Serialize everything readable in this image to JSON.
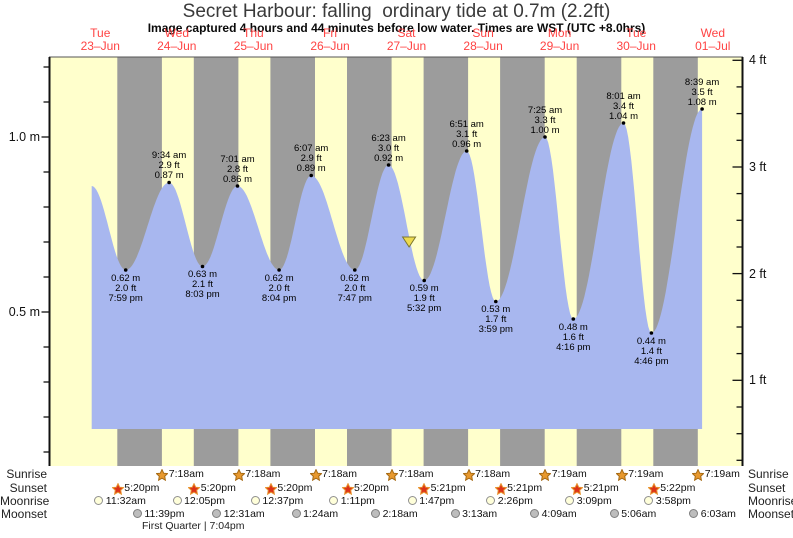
{
  "header": {
    "title": "Secret Harbour: falling  ordinary tide at 0.7m (2.2ft)",
    "subtitle": "Image captured 4 hours and 44 minutes before low water. Times are WST (UTC +8.0hrs)"
  },
  "colors": {
    "day_band": "#FFFFCC",
    "night_band": "#9C9C9C",
    "tide_fill": "#A8B7EF",
    "date_text": "#FF4343",
    "axis_line": "#111111",
    "sunrise_star_fill": "#E8992E",
    "sunrise_star_stroke": "#A66A14",
    "sunset_star_fill": "#DD3318",
    "sunset_star_stroke": "#E8952F",
    "moonrise_fill": "#FFFFDA",
    "moonrise_stroke": "#909090",
    "moonset_fill": "#BDBDBD",
    "moonset_stroke": "#7E7E7E",
    "marker_fill": "#EDDA4E",
    "marker_stroke": "#7A7530"
  },
  "chart_data": {
    "type": "area",
    "description": "Tide height curve over 9 days with day/night shading; highs/lows annotated in metres and feet with times",
    "days": [
      {
        "name": "Tue",
        "date": "23–Jun"
      },
      {
        "name": "Wed",
        "date": "24–Jun"
      },
      {
        "name": "Thu",
        "date": "25–Jun"
      },
      {
        "name": "Fri",
        "date": "26–Jun"
      },
      {
        "name": "Sat",
        "date": "27–Jun"
      },
      {
        "name": "Sun",
        "date": "28–Jun"
      },
      {
        "name": "Mon",
        "date": "29–Jun"
      },
      {
        "name": "Tue",
        "date": "30–Jun"
      },
      {
        "name": "Wed",
        "date": "01–Jul"
      }
    ],
    "y_axis_left": {
      "unit": "m",
      "labeled_ticks": [
        {
          "value": 1.0,
          "label": "1.0 m"
        },
        {
          "value": 0.5,
          "label": "0.5 m"
        }
      ],
      "minor_tick_step_m": 0.1,
      "range_m": [
        0.06,
        1.23
      ]
    },
    "y_axis_right": {
      "unit": "ft",
      "labeled_ticks": [
        {
          "value": 4,
          "label": "4 ft"
        },
        {
          "value": 3,
          "label": "3 ft"
        },
        {
          "value": 2,
          "label": "2 ft"
        },
        {
          "value": 1,
          "label": "1 ft"
        }
      ],
      "minor_tick_step_ft": 0.25
    },
    "extremes": [
      {
        "type": "high",
        "labeled": false,
        "t_hours": 9.3,
        "height_m": 0.86,
        "height_ft": null,
        "time": null,
        "height_m_label": null,
        "height_ft_label": null
      },
      {
        "type": "low",
        "labeled": true,
        "t_hours": 19.98,
        "height_m": 0.62,
        "height_ft": 2.0,
        "time": "7:59 pm",
        "height_m_label": "0.62 m",
        "height_ft_label": "2.0 ft"
      },
      {
        "type": "high",
        "labeled": true,
        "t_hours": 33.57,
        "height_m": 0.87,
        "height_ft": 2.9,
        "time": "9:34 am",
        "height_m_label": "0.87 m",
        "height_ft_label": "2.9 ft"
      },
      {
        "type": "low",
        "labeled": true,
        "t_hours": 44.05,
        "height_m": 0.63,
        "height_ft": 2.1,
        "time": "8:03 pm",
        "height_m_label": "0.63 m",
        "height_ft_label": "2.1 ft"
      },
      {
        "type": "high",
        "labeled": true,
        "t_hours": 55.02,
        "height_m": 0.86,
        "height_ft": 2.8,
        "time": "7:01 am",
        "height_m_label": "0.86 m",
        "height_ft_label": "2.8 ft"
      },
      {
        "type": "low",
        "labeled": true,
        "t_hours": 68.07,
        "height_m": 0.62,
        "height_ft": 2.0,
        "time": "8:04 pm",
        "height_m_label": "0.62 m",
        "height_ft_label": "2.0 ft"
      },
      {
        "type": "high",
        "labeled": true,
        "t_hours": 78.12,
        "height_m": 0.89,
        "height_ft": 2.9,
        "time": "6:07 am",
        "height_m_label": "0.89 m",
        "height_ft_label": "2.9 ft"
      },
      {
        "type": "low",
        "labeled": true,
        "t_hours": 91.78,
        "height_m": 0.62,
        "height_ft": 2.0,
        "time": "7:47 pm",
        "height_m_label": "0.62 m",
        "height_ft_label": "2.0 ft"
      },
      {
        "type": "high",
        "labeled": true,
        "t_hours": 102.38,
        "height_m": 0.92,
        "height_ft": 3.0,
        "time": "6:23 am",
        "height_m_label": "0.92 m",
        "height_ft_label": "3.0 ft"
      },
      {
        "type": "low",
        "labeled": true,
        "t_hours": 113.53,
        "height_m": 0.59,
        "height_ft": 1.9,
        "time": "5:32 pm",
        "height_m_label": "0.59 m",
        "height_ft_label": "1.9 ft"
      },
      {
        "type": "high",
        "labeled": true,
        "t_hours": 126.85,
        "height_m": 0.96,
        "height_ft": 3.1,
        "time": "6:51 am",
        "height_m_label": "0.96 m",
        "height_ft_label": "3.1 ft"
      },
      {
        "type": "low",
        "labeled": true,
        "t_hours": 135.98,
        "height_m": 0.53,
        "height_ft": 1.7,
        "time": "3:59 pm",
        "height_m_label": "0.53 m",
        "height_ft_label": "1.7 ft"
      },
      {
        "type": "high",
        "labeled": true,
        "t_hours": 151.42,
        "height_m": 1.0,
        "height_ft": 3.3,
        "time": "7:25 am",
        "height_m_label": "1.00 m",
        "height_ft_label": "3.3 ft"
      },
      {
        "type": "low",
        "labeled": true,
        "t_hours": 160.27,
        "height_m": 0.48,
        "height_ft": 1.6,
        "time": "4:16 pm",
        "height_m_label": "0.48 m",
        "height_ft_label": "1.6 ft"
      },
      {
        "type": "high",
        "labeled": true,
        "t_hours": 176.02,
        "height_m": 1.04,
        "height_ft": 3.4,
        "time": "8:01 am",
        "height_m_label": "1.04 m",
        "height_ft_label": "3.4 ft"
      },
      {
        "type": "low",
        "labeled": true,
        "t_hours": 184.77,
        "height_m": 0.44,
        "height_ft": 1.4,
        "time": "4:46 pm",
        "height_m_label": "0.44 m",
        "height_ft_label": "1.4 ft"
      },
      {
        "type": "high",
        "labeled": true,
        "t_hours": 200.65,
        "height_m": 1.08,
        "height_ft": 3.5,
        "time": "8:39 am",
        "height_m_label": "1.08 m",
        "height_ft_label": "3.5 ft"
      }
    ],
    "current_time_marker": {
      "t_hours": 108.8,
      "height_m": 0.7
    }
  },
  "astro": {
    "rows": [
      {
        "id": "sunrise",
        "label": "Sunrise",
        "events": [
          {
            "t_hours": 31.3,
            "time": "7:18am"
          },
          {
            "t_hours": 55.3,
            "time": "7:18am"
          },
          {
            "t_hours": 79.3,
            "time": "7:18am"
          },
          {
            "t_hours": 103.3,
            "time": "7:18am"
          },
          {
            "t_hours": 127.3,
            "time": "7:18am"
          },
          {
            "t_hours": 151.32,
            "time": "7:19am"
          },
          {
            "t_hours": 175.32,
            "time": "7:19am"
          },
          {
            "t_hours": 199.32,
            "time": "7:19am"
          }
        ]
      },
      {
        "id": "sunset",
        "label": "Sunset",
        "events": [
          {
            "t_hours": 17.33,
            "time": "5:20pm"
          },
          {
            "t_hours": 41.33,
            "time": "5:20pm"
          },
          {
            "t_hours": 65.33,
            "time": "5:20pm"
          },
          {
            "t_hours": 89.33,
            "time": "5:20pm"
          },
          {
            "t_hours": 113.35,
            "time": "5:21pm"
          },
          {
            "t_hours": 137.35,
            "time": "5:21pm"
          },
          {
            "t_hours": 161.35,
            "time": "5:21pm"
          },
          {
            "t_hours": 185.37,
            "time": "5:22pm"
          }
        ]
      },
      {
        "id": "moonrise",
        "label": "Moonrise",
        "events": [
          {
            "t_hours": 11.53,
            "time": "11:32am"
          },
          {
            "t_hours": 36.08,
            "time": "12:05pm"
          },
          {
            "t_hours": 60.62,
            "time": "12:37pm"
          },
          {
            "t_hours": 85.18,
            "time": "1:11pm"
          },
          {
            "t_hours": 109.78,
            "time": "1:47pm"
          },
          {
            "t_hours": 134.43,
            "time": "2:26pm"
          },
          {
            "t_hours": 159.15,
            "time": "3:09pm"
          },
          {
            "t_hours": 183.97,
            "time": "3:58pm"
          }
        ]
      },
      {
        "id": "moonset",
        "label": "Moonset",
        "events": [
          {
            "t_hours": 23.65,
            "time": "11:39pm"
          },
          {
            "t_hours": 48.52,
            "time": "12:31am"
          },
          {
            "t_hours": 73.4,
            "time": "1:24am"
          },
          {
            "t_hours": 98.3,
            "time": "2:18am"
          },
          {
            "t_hours": 123.22,
            "time": "3:13am"
          },
          {
            "t_hours": 148.15,
            "time": "4:09am"
          },
          {
            "t_hours": 173.1,
            "time": "5:06am"
          },
          {
            "t_hours": 198.05,
            "time": "6:03am"
          }
        ]
      }
    ],
    "moon_phase": "First Quarter | 7:04pm"
  }
}
